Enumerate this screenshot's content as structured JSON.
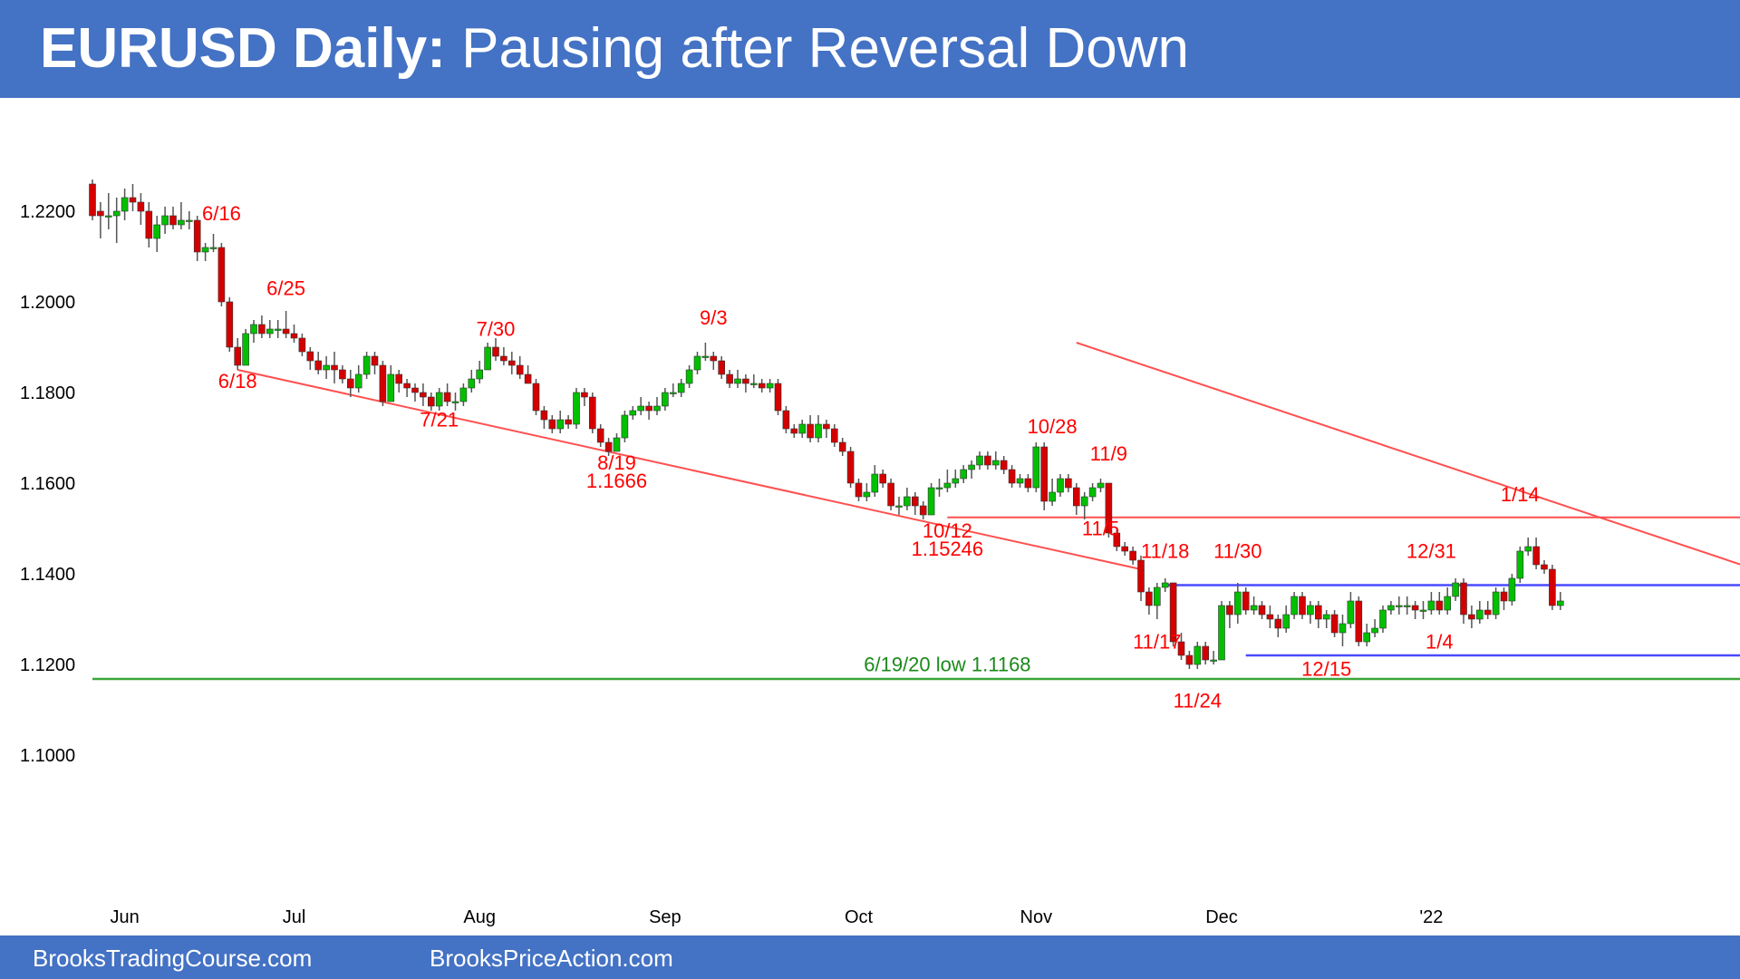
{
  "header": {
    "title_bold": "EURUSD Daily:",
    "title_rest": " Pausing after Reversal Down"
  },
  "footer": {
    "site_1": "BrooksTradingCourse.com",
    "site_2": "BrooksPriceAction.com"
  },
  "colors": {
    "header_bg": "#4472c4",
    "bull_candle": "#00c000",
    "bear_candle": "#d40000",
    "trendline": "#ff5050",
    "range_line": "#4a4aff",
    "support_line": "#3aa53a",
    "annotation": "#ff0000"
  },
  "chart_data": {
    "type": "candlestick",
    "title": "EURUSD Daily: Pausing after Reversal Down",
    "ylim": [
      1.092,
      1.233
    ],
    "y_ticks": [
      "1.2200",
      "1.2000",
      "1.1800",
      "1.1600",
      "1.1400",
      "1.1200",
      "1.1000"
    ],
    "x_ticks": [
      "Jun",
      "Jul",
      "Aug",
      "Sep",
      "Oct",
      "Nov",
      "Dec",
      "'22"
    ],
    "grid": false,
    "candles": [
      [
        1.226,
        1.219,
        1.227,
        1.218
      ],
      [
        1.22,
        1.219,
        1.222,
        1.214
      ],
      [
        1.219,
        1.219,
        1.224,
        1.216
      ],
      [
        1.219,
        1.22,
        1.223,
        1.213
      ],
      [
        1.22,
        1.223,
        1.225,
        1.218
      ],
      [
        1.223,
        1.222,
        1.226,
        1.22
      ],
      [
        1.222,
        1.22,
        1.224,
        1.217
      ],
      [
        1.22,
        1.214,
        1.222,
        1.212
      ],
      [
        1.214,
        1.217,
        1.219,
        1.211
      ],
      [
        1.217,
        1.219,
        1.221,
        1.215
      ],
      [
        1.219,
        1.217,
        1.221,
        1.216
      ],
      [
        1.217,
        1.218,
        1.222,
        1.216
      ],
      [
        1.218,
        1.218,
        1.22,
        1.216
      ],
      [
        1.218,
        1.211,
        1.219,
        1.209
      ],
      [
        1.211,
        1.212,
        1.213,
        1.209
      ],
      [
        1.212,
        1.212,
        1.215,
        1.211
      ],
      [
        1.212,
        1.2,
        1.213,
        1.199
      ],
      [
        1.2,
        1.19,
        1.201,
        1.189
      ],
      [
        1.19,
        1.186,
        1.192,
        1.185
      ],
      [
        1.186,
        1.193,
        1.194,
        1.186
      ],
      [
        1.193,
        1.195,
        1.196,
        1.191
      ],
      [
        1.195,
        1.193,
        1.197,
        1.192
      ],
      [
        1.193,
        1.194,
        1.196,
        1.192
      ],
      [
        1.194,
        1.194,
        1.196,
        1.192
      ],
      [
        1.194,
        1.193,
        1.198,
        1.192
      ],
      [
        1.193,
        1.192,
        1.195,
        1.191
      ],
      [
        1.192,
        1.189,
        1.193,
        1.188
      ],
      [
        1.189,
        1.187,
        1.19,
        1.185
      ],
      [
        1.187,
        1.185,
        1.189,
        1.184
      ],
      [
        1.185,
        1.186,
        1.188,
        1.183
      ],
      [
        1.186,
        1.185,
        1.189,
        1.182
      ],
      [
        1.185,
        1.183,
        1.186,
        1.182
      ],
      [
        1.183,
        1.181,
        1.185,
        1.179
      ],
      [
        1.181,
        1.184,
        1.186,
        1.18
      ],
      [
        1.184,
        1.188,
        1.189,
        1.183
      ],
      [
        1.188,
        1.186,
        1.189,
        1.184
      ],
      [
        1.186,
        1.178,
        1.187,
        1.177
      ],
      [
        1.178,
        1.184,
        1.186,
        1.178
      ],
      [
        1.184,
        1.182,
        1.185,
        1.18
      ],
      [
        1.182,
        1.181,
        1.183,
        1.179
      ],
      [
        1.181,
        1.18,
        1.182,
        1.178
      ],
      [
        1.18,
        1.179,
        1.182,
        1.177
      ],
      [
        1.179,
        1.177,
        1.18,
        1.176
      ],
      [
        1.177,
        1.18,
        1.181,
        1.176
      ],
      [
        1.18,
        1.178,
        1.182,
        1.177
      ],
      [
        1.178,
        1.178,
        1.18,
        1.176
      ],
      [
        1.178,
        1.181,
        1.182,
        1.177
      ],
      [
        1.181,
        1.183,
        1.185,
        1.18
      ],
      [
        1.183,
        1.185,
        1.187,
        1.182
      ],
      [
        1.185,
        1.19,
        1.191,
        1.185
      ],
      [
        1.19,
        1.188,
        1.192,
        1.187
      ],
      [
        1.188,
        1.187,
        1.19,
        1.186
      ],
      [
        1.187,
        1.186,
        1.189,
        1.184
      ],
      [
        1.186,
        1.184,
        1.188,
        1.183
      ],
      [
        1.184,
        1.182,
        1.186,
        1.182
      ],
      [
        1.182,
        1.176,
        1.183,
        1.175
      ],
      [
        1.176,
        1.174,
        1.177,
        1.172
      ],
      [
        1.174,
        1.172,
        1.175,
        1.171
      ],
      [
        1.172,
        1.174,
        1.176,
        1.171
      ],
      [
        1.174,
        1.173,
        1.175,
        1.172
      ],
      [
        1.173,
        1.18,
        1.181,
        1.172
      ],
      [
        1.18,
        1.179,
        1.181,
        1.177
      ],
      [
        1.179,
        1.172,
        1.18,
        1.171
      ],
      [
        1.172,
        1.169,
        1.173,
        1.168
      ],
      [
        1.169,
        1.167,
        1.17,
        1.166
      ],
      [
        1.167,
        1.17,
        1.171,
        1.167
      ],
      [
        1.17,
        1.175,
        1.176,
        1.169
      ],
      [
        1.175,
        1.176,
        1.177,
        1.174
      ],
      [
        1.176,
        1.177,
        1.179,
        1.175
      ],
      [
        1.177,
        1.176,
        1.178,
        1.174
      ],
      [
        1.176,
        1.177,
        1.179,
        1.175
      ],
      [
        1.177,
        1.18,
        1.181,
        1.176
      ],
      [
        1.18,
        1.18,
        1.182,
        1.179
      ],
      [
        1.18,
        1.182,
        1.183,
        1.179
      ],
      [
        1.182,
        1.185,
        1.186,
        1.181
      ],
      [
        1.185,
        1.188,
        1.189,
        1.184
      ],
      [
        1.188,
        1.188,
        1.191,
        1.187
      ],
      [
        1.188,
        1.187,
        1.189,
        1.185
      ],
      [
        1.187,
        1.184,
        1.188,
        1.183
      ],
      [
        1.184,
        1.182,
        1.185,
        1.181
      ],
      [
        1.182,
        1.183,
        1.185,
        1.181
      ],
      [
        1.183,
        1.182,
        1.184,
        1.18
      ],
      [
        1.182,
        1.182,
        1.184,
        1.181
      ],
      [
        1.182,
        1.181,
        1.183,
        1.18
      ],
      [
        1.181,
        1.182,
        1.183,
        1.18
      ],
      [
        1.182,
        1.176,
        1.183,
        1.175
      ],
      [
        1.176,
        1.172,
        1.177,
        1.171
      ],
      [
        1.172,
        1.171,
        1.173,
        1.17
      ],
      [
        1.171,
        1.173,
        1.174,
        1.17
      ],
      [
        1.173,
        1.17,
        1.175,
        1.169
      ],
      [
        1.17,
        1.173,
        1.175,
        1.169
      ],
      [
        1.173,
        1.172,
        1.174,
        1.17
      ],
      [
        1.172,
        1.169,
        1.173,
        1.168
      ],
      [
        1.169,
        1.167,
        1.17,
        1.166
      ],
      [
        1.167,
        1.16,
        1.168,
        1.159
      ],
      [
        1.16,
        1.157,
        1.161,
        1.156
      ],
      [
        1.157,
        1.158,
        1.16,
        1.156
      ],
      [
        1.158,
        1.162,
        1.164,
        1.157
      ],
      [
        1.162,
        1.16,
        1.163,
        1.159
      ],
      [
        1.16,
        1.155,
        1.161,
        1.154
      ],
      [
        1.155,
        1.155,
        1.157,
        1.153
      ],
      [
        1.155,
        1.157,
        1.159,
        1.154
      ],
      [
        1.157,
        1.155,
        1.158,
        1.153
      ],
      [
        1.155,
        1.153,
        1.156,
        1.152
      ],
      [
        1.153,
        1.159,
        1.16,
        1.153
      ],
      [
        1.159,
        1.159,
        1.161,
        1.157
      ],
      [
        1.159,
        1.16,
        1.163,
        1.158
      ],
      [
        1.16,
        1.161,
        1.163,
        1.159
      ],
      [
        1.161,
        1.163,
        1.164,
        1.16
      ],
      [
        1.163,
        1.164,
        1.165,
        1.161
      ],
      [
        1.164,
        1.166,
        1.167,
        1.163
      ],
      [
        1.166,
        1.164,
        1.167,
        1.163
      ],
      [
        1.164,
        1.165,
        1.167,
        1.163
      ],
      [
        1.165,
        1.163,
        1.166,
        1.162
      ],
      [
        1.163,
        1.16,
        1.164,
        1.159
      ],
      [
        1.16,
        1.161,
        1.162,
        1.159
      ],
      [
        1.161,
        1.159,
        1.162,
        1.158
      ],
      [
        1.159,
        1.168,
        1.169,
        1.158
      ],
      [
        1.168,
        1.156,
        1.169,
        1.154
      ],
      [
        1.156,
        1.158,
        1.161,
        1.155
      ],
      [
        1.158,
        1.161,
        1.162,
        1.157
      ],
      [
        1.161,
        1.159,
        1.162,
        1.158
      ],
      [
        1.159,
        1.155,
        1.16,
        1.153
      ],
      [
        1.155,
        1.157,
        1.158,
        1.152
      ],
      [
        1.157,
        1.159,
        1.16,
        1.156
      ],
      [
        1.159,
        1.16,
        1.161,
        1.158
      ],
      [
        1.16,
        1.149,
        1.16,
        1.148
      ],
      [
        1.149,
        1.146,
        1.15,
        1.145
      ],
      [
        1.146,
        1.145,
        1.147,
        1.144
      ],
      [
        1.145,
        1.143,
        1.146,
        1.142
      ],
      [
        1.143,
        1.136,
        1.144,
        1.134
      ],
      [
        1.136,
        1.133,
        1.137,
        1.131
      ],
      [
        1.133,
        1.137,
        1.138,
        1.13
      ],
      [
        1.137,
        1.138,
        1.139,
        1.136
      ],
      [
        1.138,
        1.125,
        1.138,
        1.124
      ],
      [
        1.125,
        1.122,
        1.127,
        1.121
      ],
      [
        1.122,
        1.12,
        1.123,
        1.119
      ],
      [
        1.12,
        1.124,
        1.125,
        1.119
      ],
      [
        1.124,
        1.121,
        1.125,
        1.12
      ],
      [
        1.121,
        1.121,
        1.123,
        1.12
      ],
      [
        1.121,
        1.133,
        1.134,
        1.121
      ],
      [
        1.133,
        1.131,
        1.134,
        1.128
      ],
      [
        1.131,
        1.136,
        1.138,
        1.129
      ],
      [
        1.136,
        1.132,
        1.137,
        1.131
      ],
      [
        1.132,
        1.133,
        1.135,
        1.131
      ],
      [
        1.133,
        1.131,
        1.134,
        1.13
      ],
      [
        1.131,
        1.13,
        1.133,
        1.128
      ],
      [
        1.13,
        1.128,
        1.131,
        1.126
      ],
      [
        1.128,
        1.131,
        1.133,
        1.127
      ],
      [
        1.131,
        1.135,
        1.136,
        1.13
      ],
      [
        1.135,
        1.131,
        1.136,
        1.13
      ],
      [
        1.131,
        1.133,
        1.134,
        1.129
      ],
      [
        1.133,
        1.13,
        1.134,
        1.128
      ],
      [
        1.13,
        1.131,
        1.132,
        1.128
      ],
      [
        1.131,
        1.127,
        1.132,
        1.126
      ],
      [
        1.127,
        1.129,
        1.131,
        1.124
      ],
      [
        1.129,
        1.134,
        1.136,
        1.128
      ],
      [
        1.134,
        1.125,
        1.135,
        1.124
      ],
      [
        1.125,
        1.127,
        1.129,
        1.124
      ],
      [
        1.127,
        1.128,
        1.13,
        1.126
      ],
      [
        1.128,
        1.132,
        1.133,
        1.127
      ],
      [
        1.132,
        1.133,
        1.134,
        1.131
      ],
      [
        1.133,
        1.133,
        1.135,
        1.131
      ],
      [
        1.133,
        1.133,
        1.135,
        1.131
      ],
      [
        1.133,
        1.132,
        1.134,
        1.13
      ],
      [
        1.132,
        1.132,
        1.134,
        1.13
      ],
      [
        1.132,
        1.134,
        1.136,
        1.131
      ],
      [
        1.134,
        1.132,
        1.136,
        1.131
      ],
      [
        1.132,
        1.135,
        1.137,
        1.131
      ],
      [
        1.135,
        1.138,
        1.139,
        1.134
      ],
      [
        1.138,
        1.131,
        1.139,
        1.129
      ],
      [
        1.131,
        1.13,
        1.133,
        1.128
      ],
      [
        1.13,
        1.132,
        1.134,
        1.129
      ],
      [
        1.132,
        1.131,
        1.134,
        1.13
      ],
      [
        1.131,
        1.136,
        1.137,
        1.13
      ],
      [
        1.136,
        1.134,
        1.137,
        1.132
      ],
      [
        1.134,
        1.139,
        1.14,
        1.133
      ],
      [
        1.139,
        1.145,
        1.146,
        1.138
      ],
      [
        1.145,
        1.146,
        1.148,
        1.144
      ],
      [
        1.146,
        1.142,
        1.148,
        1.141
      ],
      [
        1.142,
        1.141,
        1.143,
        1.14
      ],
      [
        1.141,
        1.133,
        1.142,
        1.132
      ],
      [
        1.133,
        1.134,
        1.136,
        1.132
      ]
    ],
    "trendlines": [
      {
        "name": "bear-channel-upper",
        "from": [
          122,
          1.191
        ],
        "to": [
          212,
          1.1375
        ]
      },
      {
        "name": "bear-channel-lower",
        "from": [
          18,
          1.185
        ],
        "to": [
          130,
          1.141
        ]
      },
      {
        "name": "resistance-10-12",
        "from": [
          106,
          1.15246
        ],
        "to": [
          212,
          1.15246
        ]
      }
    ],
    "range_lines": [
      {
        "name": "range-top",
        "from": [
          133,
          1.1375
        ],
        "to": [
          212,
          1.1375
        ]
      },
      {
        "name": "range-bottom",
        "from": [
          143,
          1.122
        ],
        "to": [
          212,
          1.122
        ]
      }
    ],
    "support_line": {
      "name": "low-6-19-20",
      "y": 1.1168,
      "from": 0,
      "to": 212
    },
    "annotations": [
      {
        "text": "6/16",
        "x": 16,
        "y": 1.218,
        "color": "red"
      },
      {
        "text": "6/25",
        "x": 24,
        "y": 1.2015,
        "color": "red"
      },
      {
        "text": "6/18",
        "x": 18,
        "y": 1.181,
        "color": "red"
      },
      {
        "text": "7/21",
        "x": 43,
        "y": 1.1725,
        "color": "red"
      },
      {
        "text": "7/30",
        "x": 50,
        "y": 1.1925,
        "color": "red"
      },
      {
        "text": "8/19",
        "x": 65,
        "y": 1.163,
        "color": "red"
      },
      {
        "text": "1.1666",
        "x": 65,
        "y": 1.159,
        "color": "red"
      },
      {
        "text": "9/3",
        "x": 77,
        "y": 1.195,
        "color": "red"
      },
      {
        "text": "10/28",
        "x": 119,
        "y": 1.171,
        "color": "red"
      },
      {
        "text": "11/9",
        "x": 126,
        "y": 1.165,
        "color": "red"
      },
      {
        "text": "11/5",
        "x": 125,
        "y": 1.1485,
        "color": "red"
      },
      {
        "text": "10/12",
        "x": 106,
        "y": 1.148,
        "color": "red"
      },
      {
        "text": "1.15246",
        "x": 106,
        "y": 1.144,
        "color": "red"
      },
      {
        "text": "11/18",
        "x": 133,
        "y": 1.1435,
        "color": "red"
      },
      {
        "text": "11/30",
        "x": 142,
        "y": 1.1435,
        "color": "red"
      },
      {
        "text": "11/17",
        "x": 132,
        "y": 1.1235,
        "color": "red"
      },
      {
        "text": "11/24",
        "x": 137,
        "y": 1.1105,
        "color": "red"
      },
      {
        "text": "12/15",
        "x": 153,
        "y": 1.1175,
        "color": "red"
      },
      {
        "text": "12/31",
        "x": 166,
        "y": 1.1435,
        "color": "red"
      },
      {
        "text": "1/4",
        "x": 167,
        "y": 1.1235,
        "color": "red"
      },
      {
        "text": "1/14",
        "x": 177,
        "y": 1.156,
        "color": "red"
      },
      {
        "text": "6/19/20 low 1.1168",
        "x": 106,
        "y": 1.1185,
        "color": "green"
      }
    ]
  }
}
